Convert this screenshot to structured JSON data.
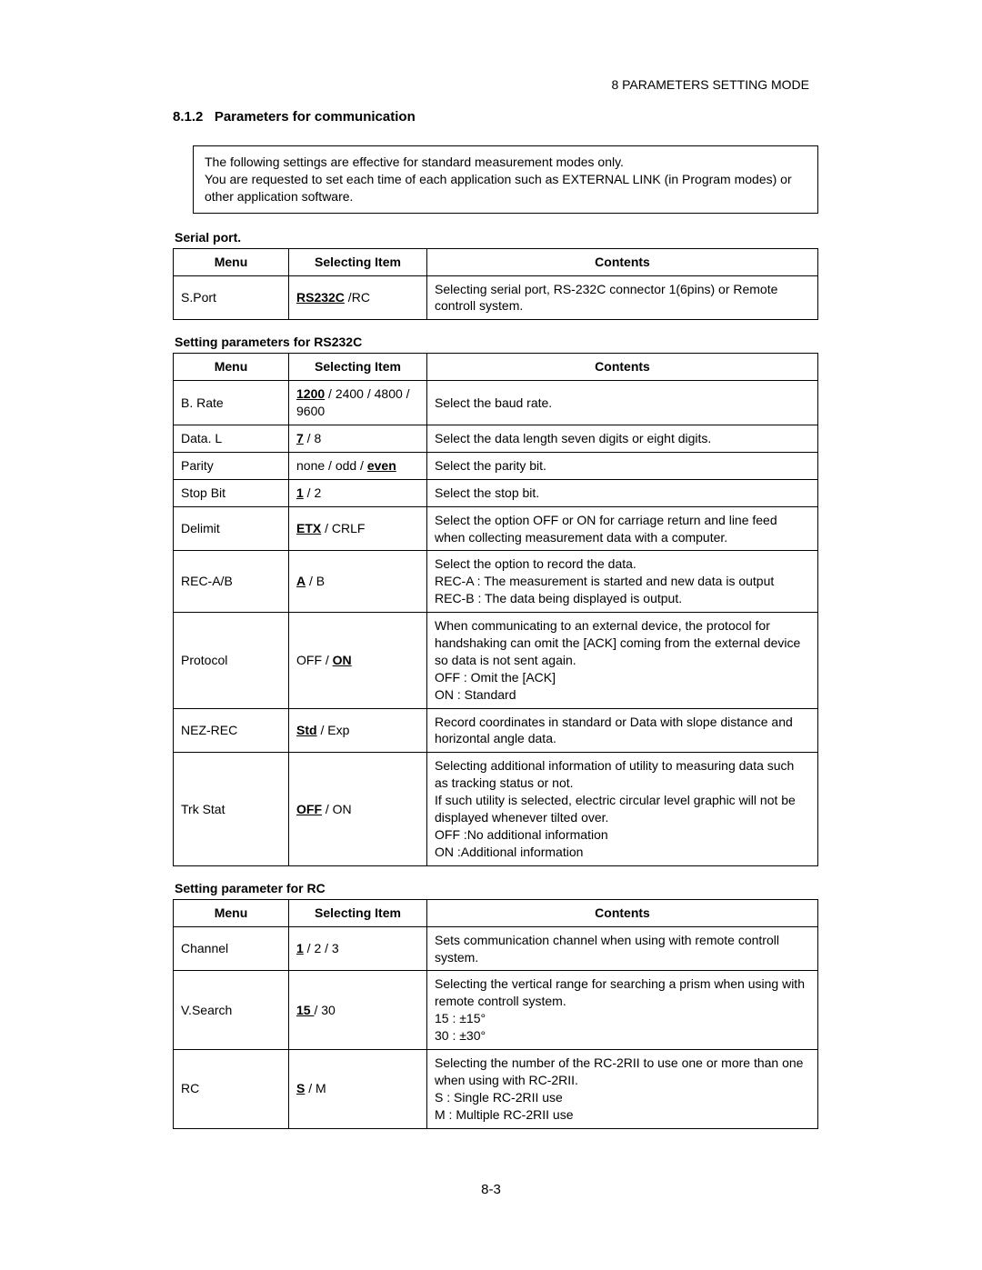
{
  "running_head": "8 PARAMETERS SETTING MODE",
  "section_number": "8.1.2",
  "section_title": "Parameters for communication",
  "note_text": "The following settings are effective for standard measurement modes only.\nYou are requested to set each time of each application such as EXTERNAL LINK (in Program modes) or other application software.",
  "sp_heading": "Serial port",
  "tbl_headers": {
    "menu": "Menu",
    "selecting": "Selecting Item",
    "contents": "Contents"
  },
  "sp_row": {
    "menu": "S.Port",
    "sel_default": "RS232C",
    "sel_sep": "  /",
    "sel_opt": "RC",
    "contents": "Selecting serial port, RS-232C connector 1(6pins) or Remote controll system."
  },
  "rs_heading": "Setting parameters for RS232C",
  "rs_rows": [
    {
      "menu": "B. Rate",
      "sel_html": "<span class='u b'>1200</span> / 2400 / 4800 / 9600",
      "contents": "Select the baud rate."
    },
    {
      "menu": "Data. L",
      "sel_html": "<span class='u b'>7</span> / 8",
      "contents": "Select the data length seven digits or eight digits."
    },
    {
      "menu": "Parity",
      "sel_html": "none / odd / <span class='u b'>even</span>",
      "contents": "Select the parity bit."
    },
    {
      "menu": "Stop Bit",
      "sel_html": "<span class='u b'>1</span> / 2",
      "contents": "Select the stop bit."
    },
    {
      "menu": "Delimit",
      "sel_html": "<span class='u b'>ETX</span> / CRLF",
      "contents": "Select the option OFF or ON for carriage return and line feed when collecting measurement data with a computer."
    },
    {
      "menu": "REC-A/B",
      "sel_html": "<span class='u b'>A</span> / B",
      "contents": "Select the option to record the data.\nREC-A :  The measurement is started and new data is output\nREC-B :  The data being displayed is output."
    },
    {
      "menu": "Protocol",
      "sel_html": "OFF / <span class='u b'>ON</span>",
      "contents": "When communicating to an external device, the protocol for handshaking can omit the [ACK] coming from the external device so data is not sent again.\nOFF :  Omit the [ACK]\nON : Standard"
    },
    {
      "menu": "NEZ-REC",
      "sel_html": "<span class='u b'>Std</span> / Exp",
      "contents": "Record coordinates in standard or Data with slope distance and horizontal angle data."
    },
    {
      "menu": "Trk Stat",
      "sel_html": "<span class='u b'>OFF</span> / ON",
      "contents": "Selecting additional information of utility to measuring data such as tracking status or not.\nIf such utility is selected, electric circular level graphic will not be displayed whenever tilted over.\nOFF   :No additional information\nON     :Additional information"
    }
  ],
  "rc_heading": "Setting parameter for RC",
  "rc_rows": [
    {
      "menu": "Channel",
      "sel_html": "<span class='u b'>1</span> / 2 / 3",
      "contents": "Sets communication channel when using with remote controll system."
    },
    {
      "menu": "V.Search",
      "sel_html": "<span class='u b'>15 </span>/ 30",
      "contents": "Selecting the vertical range for searching a prism when using with remote controll system.\n15    :   ±15°\n30    :   ±30°"
    },
    {
      "menu": "RC",
      "sel_html": "<span class='u b'>S</span> / M",
      "contents": "Selecting the number of the RC-2RII to use one or more than one when using with RC-2RII.\nS     :   Single RC-2RII use\nM    :   Multiple RC-2RII use"
    }
  ],
  "page_number": "8-3",
  "colors": {
    "text": "#000000",
    "background": "#ffffff",
    "border": "#000000"
  }
}
